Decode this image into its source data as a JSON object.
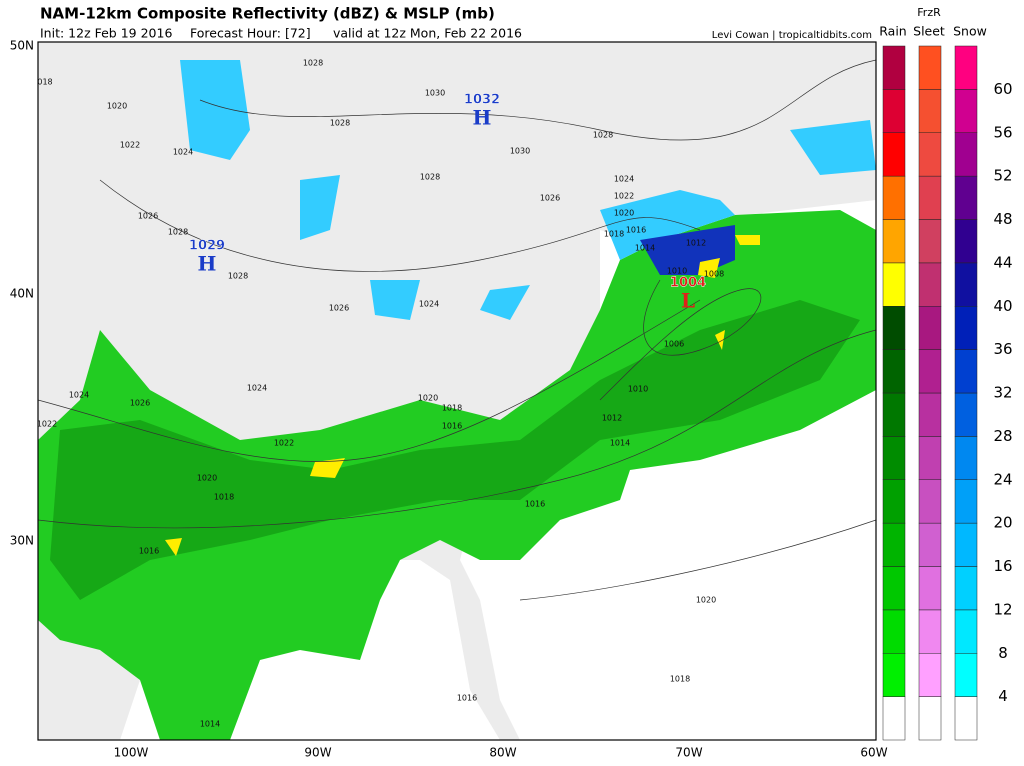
{
  "header": {
    "title": "NAM-12km Composite Reflectivity (dBZ) & MSLP (mb)",
    "init": "Init: 12z Feb 19 2016",
    "forecast": "Forecast Hour: [72]",
    "valid": "valid at 12z Mon, Feb 22 2016",
    "credit": "Levi Cowan | tropicaltidbits.com"
  },
  "colorbar": {
    "rain": "Rain",
    "frzr": "FrzR",
    "sleet": "Sleet",
    "snow": "Snow",
    "labels": [
      "4",
      "8",
      "12",
      "16",
      "20",
      "24",
      "28",
      "32",
      "36",
      "40",
      "44",
      "48",
      "52",
      "56",
      "60"
    ]
  },
  "axes": {
    "lat": [
      "50N",
      "40N",
      "30N"
    ],
    "lon": [
      "100W",
      "90W",
      "80W",
      "70W",
      "60W"
    ]
  },
  "centers": [
    {
      "value": "1032",
      "letter": "H"
    },
    {
      "value": "1029",
      "letter": "H"
    },
    {
      "value": "1004",
      "letter": "L"
    }
  ],
  "isobar_labels": [
    "018",
    "1020",
    "1022",
    "1024",
    "1026",
    "1028",
    "1028",
    "1028",
    "1030",
    "1030",
    "1028",
    "1028",
    "1026",
    "1024",
    "1022",
    "1020",
    "1018",
    "1016",
    "1014",
    "1012",
    "1010",
    "1008",
    "1006",
    "1010",
    "1012",
    "1014",
    "1016",
    "1018",
    "1020",
    "1016",
    "1022",
    "1024",
    "1026",
    "1024",
    "1022",
    "1020",
    "1018",
    "1016",
    "1014",
    "1016",
    "1018",
    "1020",
    "1026",
    "1024",
    "1028"
  ]
}
